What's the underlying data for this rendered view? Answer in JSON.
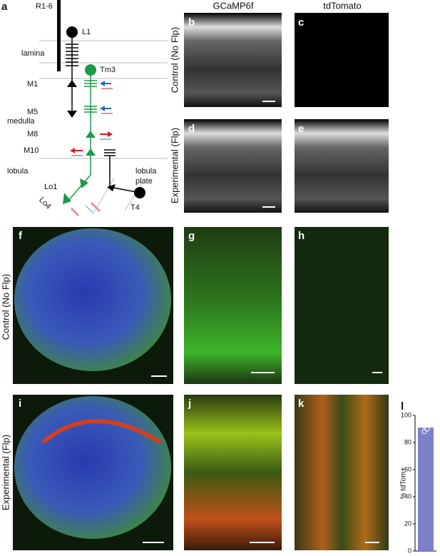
{
  "panel_labels": [
    "a",
    "b",
    "c",
    "d",
    "e",
    "f",
    "g",
    "h",
    "i",
    "j",
    "k",
    "l"
  ],
  "column_headers": [
    "GCaMP6f",
    "tdTomato"
  ],
  "row_labels": [
    "Control (No Flp)",
    "Experimental (Flp)",
    "Control (No Flp)",
    "Experimental (Flp)"
  ],
  "diagram": {
    "labels": [
      "R1-6",
      "L1",
      "lamina",
      "Tm3",
      "M1",
      "M5",
      "medulla",
      "M8",
      "M10",
      "lobula",
      "Lo1",
      "Lo4",
      "lobula",
      "plate",
      "T4"
    ]
  },
  "chart_data": {
    "type": "bar",
    "ylabel": "% tdTom+",
    "values": [
      91
    ],
    "points": [
      88,
      90,
      92,
      94,
      95
    ],
    "color": "#7b80c8",
    "ylim": [
      0,
      100
    ],
    "yticks": [
      0,
      20,
      40,
      60,
      80,
      100
    ]
  }
}
